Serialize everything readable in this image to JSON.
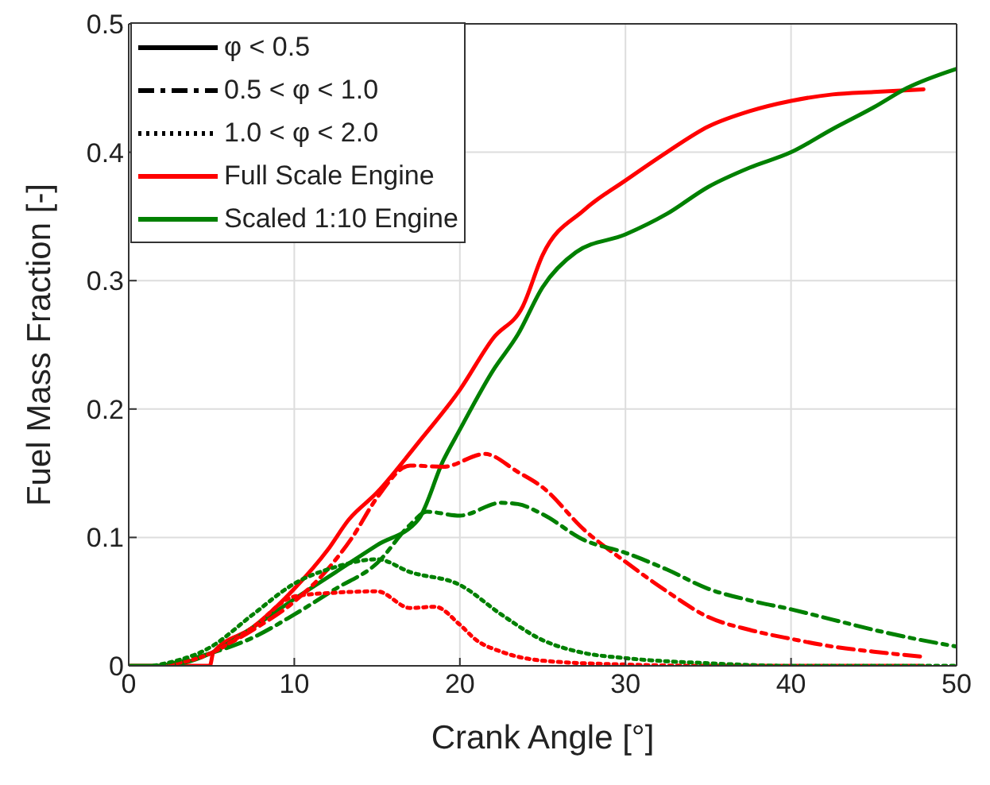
{
  "chart_data": {
    "type": "line",
    "xlabel": "Crank Angle [°]",
    "ylabel": "Fuel Mass Fraction [-]",
    "xlim": [
      0,
      50
    ],
    "xticks": [
      0,
      10,
      20,
      30,
      40,
      50
    ],
    "ylim": [
      0,
      0.5
    ],
    "yticks": [
      0,
      0.1,
      0.2,
      0.3,
      0.4,
      0.5
    ],
    "grid": true,
    "legend": "top left",
    "series": [
      {
        "name": "φ < 0.5",
        "color": "#000000",
        "line_style": "solid"
      },
      {
        "name": "0.5 < φ < 1.0",
        "color": "#000000",
        "line_style": "dashdot"
      },
      {
        "name": "1.0 < φ < 2.0",
        "color": "#000000",
        "line_style": "dotted"
      },
      {
        "name": "Full Scale Engine",
        "color": "#ff0000",
        "line_style": "solid"
      },
      {
        "name": "Scaled 1:10 Engine",
        "color": "#008000",
        "line_style": "solid"
      },
      {
        "color": "#ff0000",
        "line_style": "solid",
        "x": [
          0,
          2,
          4.9,
          5.1,
          7.5,
          10,
          12,
          13.3,
          15,
          17.5,
          20,
          22,
          23.8,
          25,
          27.5,
          30,
          32.5,
          35,
          37.5,
          40,
          42.5,
          45,
          48
        ],
        "values": [
          0,
          0,
          0,
          0.01,
          0.03,
          0.06,
          0.09,
          0.114,
          0.135,
          0.174,
          0.215,
          0.255,
          0.28,
          0.32,
          0.355,
          0.378,
          0.4,
          0.42,
          0.432,
          0.44,
          0.445,
          0.447,
          0.449
        ]
      },
      {
        "color": "#008000",
        "line_style": "solid",
        "x": [
          0,
          2,
          5,
          7.5,
          10,
          12.5,
          15,
          17.5,
          19,
          20,
          22,
          23.5,
          25,
          27,
          30,
          32.5,
          35,
          37.5,
          40,
          42.5,
          45,
          47,
          50
        ],
        "values": [
          0,
          0,
          0.01,
          0.03,
          0.052,
          0.073,
          0.094,
          0.114,
          0.16,
          0.184,
          0.23,
          0.258,
          0.295,
          0.322,
          0.336,
          0.352,
          0.373,
          0.388,
          0.4,
          0.418,
          0.435,
          0.45,
          0.465
        ]
      },
      {
        "color": "#ff0000",
        "line_style": "dashdot",
        "x": [
          5,
          7.5,
          10,
          12,
          13.5,
          15,
          17,
          19,
          21.5,
          23.5,
          25,
          27.5,
          30,
          32.5,
          35,
          37.5,
          40,
          42.5,
          45,
          48
        ],
        "values": [
          0.01,
          0.028,
          0.05,
          0.075,
          0.1,
          0.131,
          0.156,
          0.155,
          0.165,
          0.151,
          0.139,
          0.106,
          0.081,
          0.058,
          0.038,
          0.028,
          0.021,
          0.015,
          0.011,
          0.007
        ]
      },
      {
        "color": "#008000",
        "line_style": "dashdot",
        "x": [
          2,
          5,
          7.5,
          10,
          12.5,
          15,
          17,
          18,
          20,
          22.5,
          23.5,
          25,
          27.5,
          30,
          32.5,
          35,
          37.5,
          40,
          42.5,
          45,
          47.5,
          50
        ],
        "values": [
          0,
          0.01,
          0.022,
          0.04,
          0.06,
          0.08,
          0.11,
          0.12,
          0.117,
          0.127,
          0.126,
          0.118,
          0.098,
          0.088,
          0.075,
          0.06,
          0.051,
          0.044,
          0.036,
          0.028,
          0.021,
          0.015
        ]
      },
      {
        "color": "#ff0000",
        "line_style": "dotted",
        "x": [
          2,
          5,
          7.5,
          10,
          12.5,
          15,
          17,
          18.5,
          20,
          21,
          22.5,
          25,
          30,
          35,
          40,
          45,
          48
        ],
        "values": [
          0,
          0.01,
          0.03,
          0.054,
          0.057,
          0.058,
          0.045,
          0.046,
          0.032,
          0.02,
          0.011,
          0.004,
          0.001,
          0,
          0,
          0,
          0
        ]
      },
      {
        "color": "#008000",
        "line_style": "dotted",
        "x": [
          1.5,
          5,
          7.5,
          10,
          12.5,
          15,
          17,
          20,
          22.5,
          25,
          27.5,
          30,
          35,
          40,
          45,
          50
        ],
        "values": [
          0,
          0.015,
          0.04,
          0.064,
          0.077,
          0.083,
          0.073,
          0.063,
          0.04,
          0.02,
          0.01,
          0.006,
          0.002,
          0,
          0,
          0
        ]
      }
    ]
  }
}
